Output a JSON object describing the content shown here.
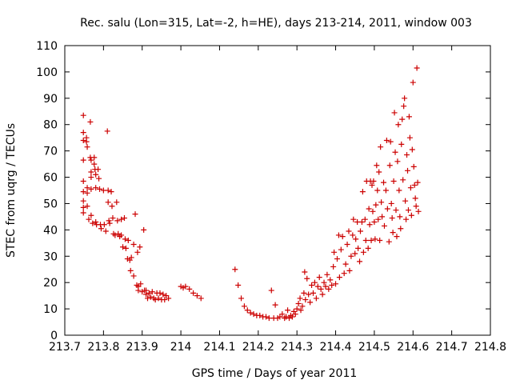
{
  "chart_data": {
    "type": "scatter",
    "title": "Rec. salu (Lon=315, Lat=-2, h=HE), days 213-214, 2011, window 003",
    "xlabel": "GPS time / Days of year 2011",
    "ylabel": "STEC from uqrg / TECUs",
    "xlim": [
      213.7,
      214.8
    ],
    "ylim": [
      0,
      110
    ],
    "xticks": [
      213.7,
      213.8,
      213.9,
      214.0,
      214.1,
      214.2,
      214.3,
      214.4,
      214.5,
      214.6,
      214.7,
      214.8
    ],
    "xtick_labels": [
      "213.7",
      "213.8",
      "213.9",
      "214",
      "214.1",
      "214.2",
      "214.3",
      "214.4",
      "214.5",
      "214.6",
      "214.7",
      "214.8"
    ],
    "yticks": [
      0,
      10,
      20,
      30,
      40,
      50,
      60,
      70,
      80,
      90,
      100,
      110
    ],
    "ytick_labels": [
      "0",
      "10",
      "20",
      "30",
      "40",
      "50",
      "60",
      "70",
      "80",
      "90",
      "100",
      "110"
    ],
    "grid": false,
    "legend": "none",
    "marker": "plus",
    "color": "#cc0000",
    "series": [
      {
        "points": [
          [
            213.748,
            83.5
          ],
          [
            213.748,
            77
          ],
          [
            213.748,
            74
          ],
          [
            213.748,
            66.5
          ],
          [
            213.748,
            58.5
          ],
          [
            213.748,
            54.5
          ],
          [
            213.748,
            51
          ],
          [
            213.748,
            48.5
          ],
          [
            213.748,
            46.5
          ],
          [
            213.756,
            75
          ],
          [
            213.756,
            73.5
          ],
          [
            213.758,
            71.5
          ],
          [
            213.758,
            56
          ],
          [
            213.758,
            54
          ],
          [
            213.758,
            49
          ],
          [
            213.762,
            44
          ],
          [
            213.766,
            81
          ],
          [
            213.766,
            67.5
          ],
          [
            213.768,
            66.5
          ],
          [
            213.768,
            62
          ],
          [
            213.768,
            60
          ],
          [
            213.768,
            55.5
          ],
          [
            213.768,
            45.5
          ],
          [
            213.772,
            42.5
          ],
          [
            213.776,
            67.5
          ],
          [
            213.776,
            65
          ],
          [
            213.778,
            63
          ],
          [
            213.78,
            61
          ],
          [
            213.78,
            56
          ],
          [
            213.78,
            43
          ],
          [
            213.782,
            42
          ],
          [
            213.786,
            63
          ],
          [
            213.788,
            59.5
          ],
          [
            213.79,
            55.5
          ],
          [
            213.792,
            42
          ],
          [
            213.794,
            40.5
          ],
          [
            213.8,
            55
          ],
          [
            213.802,
            42
          ],
          [
            213.806,
            39.5
          ],
          [
            213.81,
            77.5
          ],
          [
            213.812,
            55
          ],
          [
            213.812,
            50.5
          ],
          [
            213.814,
            43.5
          ],
          [
            213.816,
            42.5
          ],
          [
            213.82,
            54.5
          ],
          [
            213.822,
            49
          ],
          [
            213.824,
            44.5
          ],
          [
            213.826,
            38.5
          ],
          [
            213.83,
            38
          ],
          [
            213.834,
            50.5
          ],
          [
            213.836,
            43.5
          ],
          [
            213.838,
            38.5
          ],
          [
            213.842,
            37.5
          ],
          [
            213.846,
            38
          ],
          [
            213.846,
            44
          ],
          [
            213.85,
            33.5
          ],
          [
            213.854,
            44.5
          ],
          [
            213.856,
            36.5
          ],
          [
            213.858,
            33
          ],
          [
            213.862,
            29
          ],
          [
            213.864,
            36
          ],
          [
            213.868,
            28.5
          ],
          [
            213.87,
            24.5
          ],
          [
            213.872,
            29.5
          ],
          [
            213.878,
            34.5
          ],
          [
            213.878,
            22.5
          ],
          [
            213.882,
            46
          ],
          [
            213.886,
            19
          ],
          [
            213.888,
            31.5
          ],
          [
            213.89,
            18.5
          ],
          [
            213.89,
            17
          ],
          [
            213.894,
            33.5
          ],
          [
            213.896,
            19.5
          ],
          [
            213.9,
            16.5
          ],
          [
            213.904,
            40
          ],
          [
            213.906,
            17
          ],
          [
            213.91,
            15.5
          ],
          [
            213.91,
            17
          ],
          [
            213.914,
            14
          ],
          [
            213.918,
            16
          ],
          [
            213.922,
            14.5
          ],
          [
            213.926,
            16.5
          ],
          [
            213.93,
            14
          ],
          [
            213.934,
            13.5
          ],
          [
            213.938,
            16
          ],
          [
            213.942,
            14
          ],
          [
            213.946,
            16
          ],
          [
            213.95,
            13.5
          ],
          [
            213.954,
            15.5
          ],
          [
            213.958,
            13.5
          ],
          [
            213.962,
            15
          ],
          [
            213.968,
            14
          ],
          [
            214.0,
            18.5
          ],
          [
            214.006,
            18
          ],
          [
            214.012,
            18.5
          ],
          [
            214.022,
            17.5
          ],
          [
            214.032,
            16
          ],
          [
            214.042,
            15
          ],
          [
            214.052,
            14
          ],
          [
            214.14,
            25
          ],
          [
            214.148,
            19
          ],
          [
            214.156,
            14
          ],
          [
            214.164,
            11
          ],
          [
            214.172,
            9.5
          ],
          [
            214.18,
            8.5
          ],
          [
            214.188,
            8
          ],
          [
            214.196,
            7.5
          ],
          [
            214.204,
            7.5
          ],
          [
            214.212,
            7
          ],
          [
            214.22,
            7
          ],
          [
            214.228,
            6.5
          ],
          [
            214.234,
            17
          ],
          [
            214.24,
            6.5
          ],
          [
            214.244,
            11.5
          ],
          [
            214.25,
            6.5
          ],
          [
            214.256,
            7
          ],
          [
            214.262,
            8
          ],
          [
            214.268,
            6.5
          ],
          [
            214.272,
            7
          ],
          [
            214.276,
            9.5
          ],
          [
            214.28,
            6.5
          ],
          [
            214.284,
            7.5
          ],
          [
            214.288,
            7
          ],
          [
            214.292,
            9
          ],
          [
            214.296,
            8
          ],
          [
            214.3,
            10
          ],
          [
            214.304,
            12
          ],
          [
            214.308,
            14
          ],
          [
            214.31,
            9.5
          ],
          [
            214.314,
            11
          ],
          [
            214.318,
            16
          ],
          [
            214.32,
            24
          ],
          [
            214.322,
            13.5
          ],
          [
            214.326,
            21.5
          ],
          [
            214.33,
            15.5
          ],
          [
            214.334,
            12.5
          ],
          [
            214.338,
            19
          ],
          [
            214.342,
            16
          ],
          [
            214.346,
            20
          ],
          [
            214.35,
            14
          ],
          [
            214.354,
            18.5
          ],
          [
            214.358,
            22
          ],
          [
            214.362,
            17.5
          ],
          [
            214.366,
            15.5
          ],
          [
            214.37,
            20
          ],
          [
            214.374,
            18.5
          ],
          [
            214.378,
            23
          ],
          [
            214.382,
            17.5
          ],
          [
            214.386,
            21
          ],
          [
            214.39,
            19
          ],
          [
            214.394,
            26
          ],
          [
            214.396,
            31.5
          ],
          [
            214.4,
            19.5
          ],
          [
            214.404,
            29
          ],
          [
            214.408,
            38
          ],
          [
            214.41,
            22
          ],
          [
            214.414,
            32.5
          ],
          [
            214.418,
            37.5
          ],
          [
            214.422,
            23.5
          ],
          [
            214.426,
            27
          ],
          [
            214.43,
            34.5
          ],
          [
            214.434,
            39.5
          ],
          [
            214.436,
            24.5
          ],
          [
            214.44,
            30
          ],
          [
            214.444,
            38
          ],
          [
            214.446,
            44
          ],
          [
            214.45,
            31
          ],
          [
            214.452,
            36.5
          ],
          [
            214.456,
            43
          ],
          [
            214.458,
            33
          ],
          [
            214.462,
            28
          ],
          [
            214.464,
            39.5
          ],
          [
            214.468,
            43
          ],
          [
            214.47,
            54.5
          ],
          [
            214.472,
            31.5
          ],
          [
            214.476,
            44
          ],
          [
            214.478,
            36
          ],
          [
            214.48,
            58.5
          ],
          [
            214.484,
            33
          ],
          [
            214.486,
            48
          ],
          [
            214.488,
            42
          ],
          [
            214.49,
            58.5
          ],
          [
            214.492,
            36
          ],
          [
            214.494,
            57
          ],
          [
            214.496,
            47
          ],
          [
            214.498,
            58.5
          ],
          [
            214.5,
            43
          ],
          [
            214.502,
            36.5
          ],
          [
            214.504,
            49.5
          ],
          [
            214.506,
            64.5
          ],
          [
            214.508,
            55
          ],
          [
            214.51,
            44
          ],
          [
            214.512,
            62
          ],
          [
            214.514,
            36
          ],
          [
            214.516,
            71.5
          ],
          [
            214.518,
            50.5
          ],
          [
            214.52,
            45
          ],
          [
            214.524,
            58
          ],
          [
            214.526,
            41.5
          ],
          [
            214.53,
            55
          ],
          [
            214.532,
            74
          ],
          [
            214.534,
            48
          ],
          [
            214.538,
            35.5
          ],
          [
            214.54,
            64.5
          ],
          [
            214.542,
            73.5
          ],
          [
            214.544,
            50
          ],
          [
            214.546,
            44.5
          ],
          [
            214.548,
            39
          ],
          [
            214.55,
            58.5
          ],
          [
            214.552,
            84.5
          ],
          [
            214.554,
            69.5
          ],
          [
            214.556,
            47.5
          ],
          [
            214.558,
            37.5
          ],
          [
            214.56,
            66
          ],
          [
            214.562,
            80
          ],
          [
            214.564,
            55
          ],
          [
            214.566,
            45
          ],
          [
            214.568,
            40.5
          ],
          [
            214.57,
            72.5
          ],
          [
            214.572,
            82
          ],
          [
            214.574,
            59
          ],
          [
            214.576,
            87
          ],
          [
            214.578,
            90
          ],
          [
            214.58,
            51
          ],
          [
            214.582,
            44
          ],
          [
            214.584,
            68.5
          ],
          [
            214.586,
            62.5
          ],
          [
            214.588,
            47.5
          ],
          [
            214.59,
            83
          ],
          [
            214.592,
            75
          ],
          [
            214.594,
            56
          ],
          [
            214.596,
            45.5
          ],
          [
            214.598,
            70.5
          ],
          [
            214.6,
            96
          ],
          [
            214.602,
            64
          ],
          [
            214.604,
            57
          ],
          [
            214.606,
            52
          ],
          [
            214.608,
            49
          ],
          [
            214.61,
            101.5
          ],
          [
            214.612,
            58
          ],
          [
            214.614,
            47
          ]
        ]
      }
    ]
  }
}
